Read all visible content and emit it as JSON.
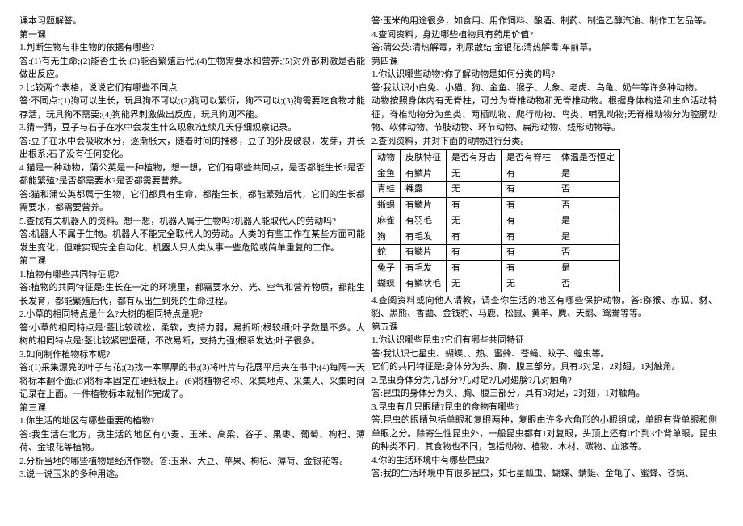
{
  "left": {
    "l0": "课本习题解答。",
    "l1": "第一课",
    "l2": "1.判断生物与非生物的依据有哪些?",
    "l3": "答:(1)有无生命;(2)能否生长;(3)能否繁殖后代;(4)生物需要水和营养;(5)对外部刺激是否能做出反应。",
    "l4": "2.比较两个表格，说说它们有哪些不同点",
    "l5": "答:不同点:(1)狗可以生长，玩具狗不可以;(2)狗可以繁衍，狗不可以;(3)狗需要吃食物才能存活，玩具狗不需要;(4)狗能界刺激做出反应，玩具狗则不能。",
    "l6": "3.猜一猜，豆子与石子在水中会发生什么现象?连续几天仔细观察记录。",
    "l7": "答:豆子在水中会吸收水分，逐渐胀大，随着时间的推移，豆子的外皮破裂，发芽，并长出根系;石子没有任何变化。",
    "l8": "4.猫是一种动物，蒲公英是一种植物，想一想，它们有哪些共同点，是否都能生长?是否都能繁殖?是否都需要水?是否都需要营养。",
    "l9": "答:猫和蒲公英都属于生物，它们都具有生命，都能生长，都能繁殖后代，它们的生长都需要水，都需要营养。",
    "l10": "5.查找有关机器人的资料。想一想，机器人属于生物吗?机器人能取代人的劳动吗?",
    "l11": "答:机器人不属于生物。机器人不能完全取代人的劳动。人类的有些工作在某些方面可能发生变化，但难实现完全自动化、机器人只人类从事一些危险或简单重复的工作。",
    "l12": "第二课",
    "l13": "1.植物有哪些共同特征呢?",
    "l14": "答:植物的共同特征是:生长在一定的环境里，都需要水分、光、空气和营养物质，都能生长发育，都能繁殖后代，都有从出生到死的生命过程。",
    "l15": "2.小草的相同特点是什么?大树的相同特点是呢?",
    "l16": "答:小草的相同特点是:茎比较疏松，柔软，支持力弱，易折断;根较细;叶子数量不多。大树的相同特点是:茎比较紧密坚硬，不改易断，支持力强;根系发达;叶子很多。",
    "l17": "3.如何制作植物标本呢?",
    "l18": "答:(1)采集漂亮的叶子与花;(2)找一本厚厚的书;(3)将叶片与花展平后夹在书中;(4)每隔一天将标本翻个面;(5)将标本固定在硬纸板上。(6)将植物名称、采集地点、采集人、采集时间记录在上面。一件植物标本就制作完成了。",
    "l19": "第三课",
    "l20": "1.你生活的地区有哪些重要的植物?",
    "l21": "答:我生活在北方，我生活的地区有小麦、玉米、高梁、谷子、果枣、葡萄、枸杞、薄荷、金银花等植物。",
    "l22": "2.分析当地的哪些植物是经济作物。答:玉米、大豆、苹果、枸杞、薄荷、金银花等。",
    "l23": "3.说一说玉米的多种用途。"
  },
  "right": {
    "r0": "答:玉米的用途很多，如食用、用作饲料、酿酒、制药、制造乙醇汽油、制作工艺品等。",
    "r1": "4.查阅资料，身边哪些植物具有药用价值?",
    "r2": "答:蒲公英:清热解毒，利尿散结;金银花:清热解毒;车前草。",
    "r3": "第四课",
    "r4": "1.你认识哪些动物?你了解动物是如何分类的吗?",
    "r5": "答:我认识小白兔、小猫、狗、金鱼、猴子、大象、老虎、乌龟、奶牛等许多种动物。",
    "r6": "动物按照身体内有无脊柱，可分为脊椎动物和无脊椎动物。根据身体构造和生命活动特征，脊椎动物分为鱼类、两栖动物、爬行动物、鸟类、哺乳动物;无脊椎动物分为腔肠动物、软体动物、节肢动物、环节动物、扁形动物、线形动物等。",
    "r7": "2.查阅资料，并对下面的动物进行分类。",
    "r8": "4.查阅资料或向他人请教，调查你生活的地区有哪些保护动物。答:猕猴、赤狐、豺、貂、黑熊、香鼬、金钱豹、马鹿、松鼠、黄羊、麂、天鹅、鸳鸯等等。",
    "r9": "第五课",
    "r10": "1.你认识哪些昆虫?它们有哪些共同特征",
    "r11": "答:我认识七星虫、蝴蝶、、热、蜜蜂、苍蝇、蚊子、蝗虫等。",
    "r12": "它们的共同特征是:身体分为头、胸、腹三部分，具有3对足，2对翅，1对触角。",
    "r13": "2.昆虫身体分为几部分?几对足?几对翅膀?几对触角?",
    "r14": "答:昆虫的身体分为头、胸、腹三部分，具有3对足，2对翅，1对触角。",
    "r15": "3.昆虫有几只眼睛?昆虫的食物有哪些?",
    "r16": "答:昆虫的眼睛包括单眼和复眼两种，复眼由许多六角形的小眼组成，单眼有背单眼和侧单眼之分。除寄生性昆虫外，一般昆虫都有1对复眼，头顶上还有0个到3个背单眼。昆虫的种类不同，其食物也不同，包括动物、植物、木材、碳物、血液等。",
    "r17": "4.你的生活环境中有哪些昆虫?",
    "r18": "答:我的生活环境中有很多昆虫，如七星瓢虫、蝴蝶、蜻蜓、金龟子、蜜蜂、苍蝇、"
  },
  "table": {
    "headers": [
      "动物",
      "皮肤特征",
      "是否有牙齿",
      "是否有脊柱",
      "体温是否恒定"
    ],
    "rows": [
      [
        "金鱼",
        "有鳞片",
        "无",
        "有",
        "是"
      ],
      [
        "青蛙",
        "裸露",
        "无",
        "有",
        "否"
      ],
      [
        "蜥蜴",
        "有鳞片",
        "有",
        "有",
        "否"
      ],
      [
        "麻雀",
        "有羽毛",
        "无",
        "有",
        "是"
      ],
      [
        "狗",
        "有毛发",
        "有",
        "有",
        "是"
      ],
      [
        "蛇",
        "有鳞片",
        "有",
        "有",
        "否"
      ],
      [
        "兔子",
        "有毛发",
        "有",
        "有",
        "是"
      ],
      [
        "蝴蝶",
        "有鳞状毛",
        "无",
        "无",
        "否"
      ]
    ]
  }
}
